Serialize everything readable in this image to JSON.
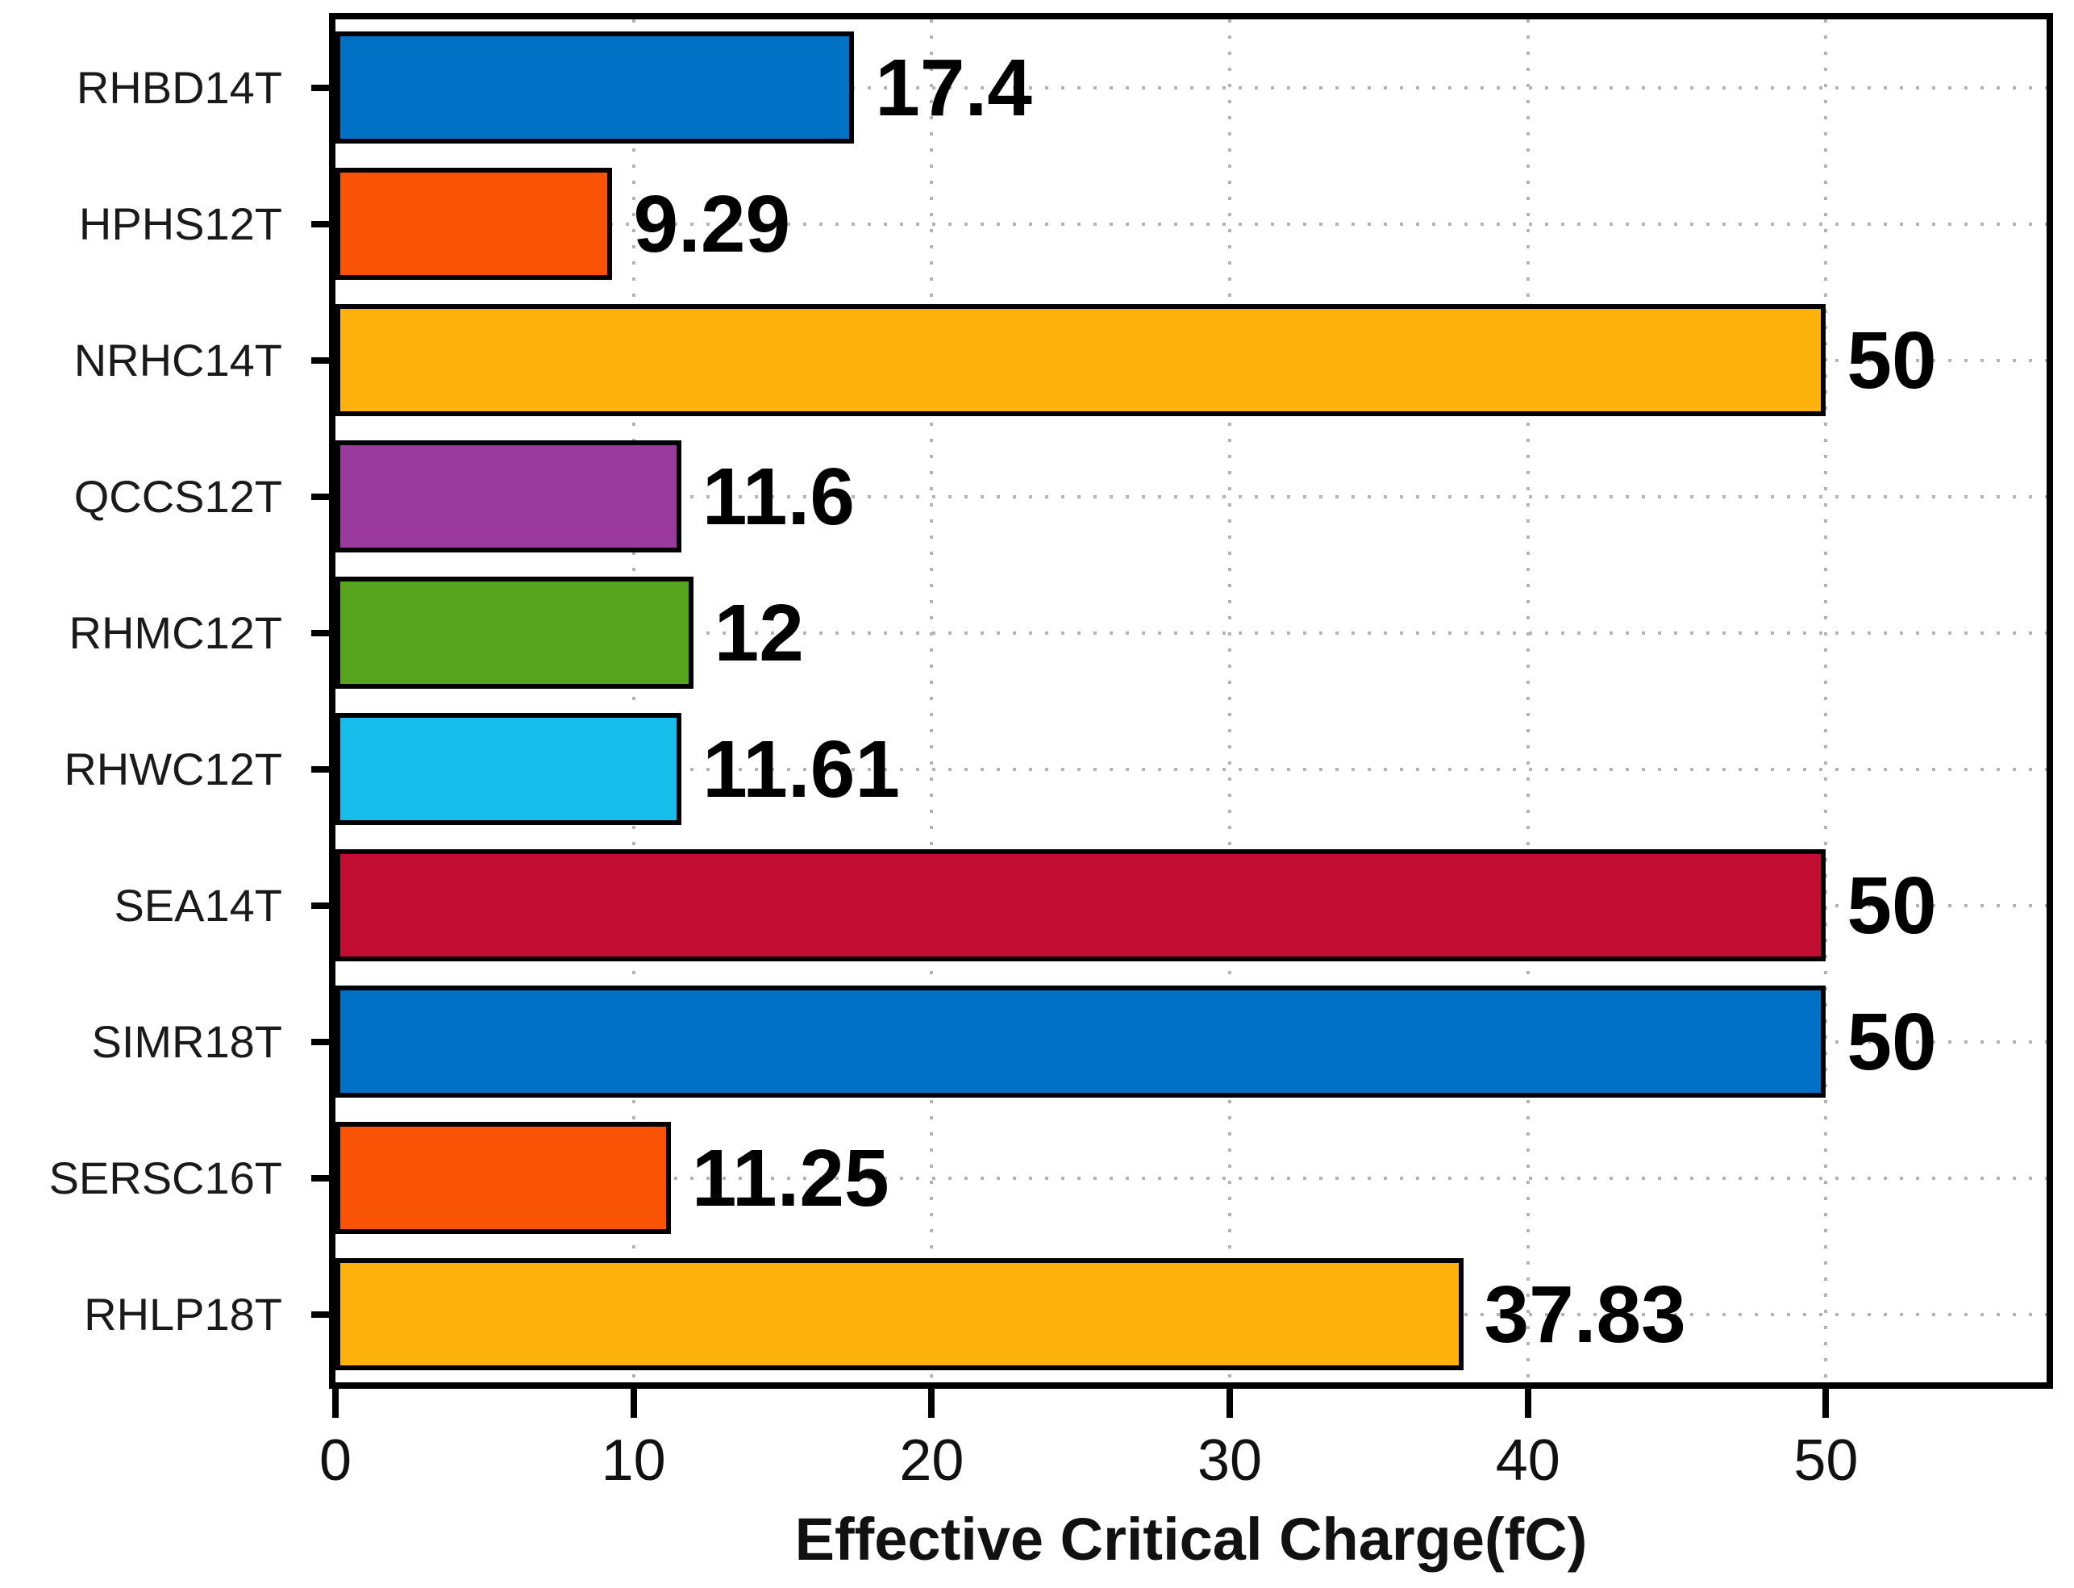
{
  "figure": {
    "background": "#ffffff",
    "frame_color": "#000000",
    "grid_color": "#b4b4b4",
    "grid_style": "dotted",
    "text_color": "#1a1a1a"
  },
  "chart_data": {
    "type": "bar",
    "orientation": "horizontal",
    "title": "",
    "xlabel": "Effective Critical Charge(fC)",
    "ylabel": "",
    "categories": [
      "RHBD14T",
      "HPHS12T",
      "NRHC14T",
      "QCCS12T",
      "RHMC12T",
      "RHWC12T",
      "SEA14T",
      "SIMR18T",
      "SERSC16T",
      "RHLP18T"
    ],
    "values": [
      17.4,
      9.29,
      50,
      11.6,
      12,
      11.61,
      50,
      50,
      11.25,
      37.83
    ],
    "bar_labels": [
      "17.4",
      "9.29",
      "50",
      "11.6",
      "12",
      "11.61",
      "50",
      "50",
      "11.25",
      "37.83"
    ],
    "bar_colors": [
      "#0072C5",
      "#F95306",
      "#FCB20A",
      "#9A3A9C",
      "#57A41F",
      "#17BEEB",
      "#C00D31",
      "#0072C5",
      "#F95306",
      "#FCB20A"
    ],
    "bar_edge_color": "#000000",
    "x_ticks": [
      0,
      10,
      20,
      30,
      40,
      50
    ],
    "x_tick_labels": [
      "0",
      "10",
      "20",
      "30",
      "40",
      "50"
    ],
    "xlim": [
      0,
      57.4
    ],
    "grid": "dotted gridlines at x ticks and at each category row center",
    "legend_position": "none"
  }
}
